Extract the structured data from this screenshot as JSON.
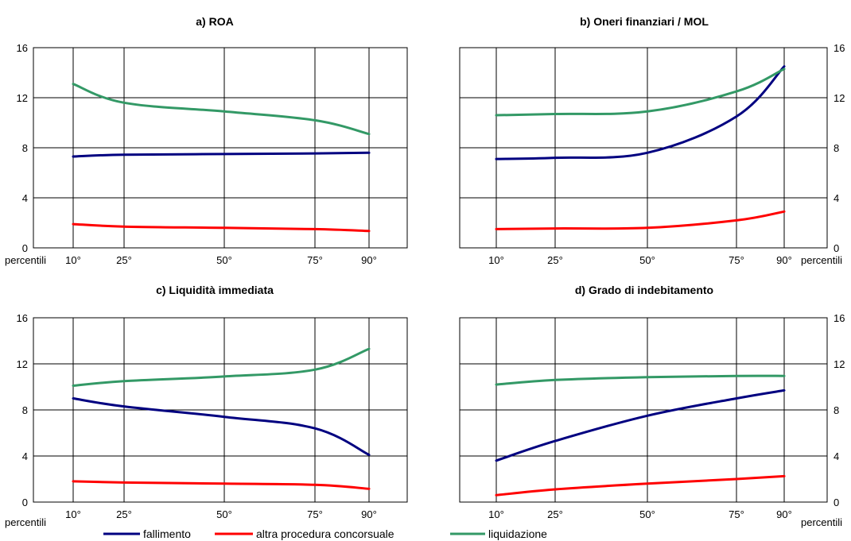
{
  "colors": {
    "fallimento": "#000080",
    "altra": "#ff0000",
    "liquidazione": "#339966"
  },
  "legend": [
    {
      "key": "fallimento",
      "label": "fallimento",
      "color": "#000080"
    },
    {
      "key": "altra",
      "label": "altra procedura concorsuale",
      "color": "#ff0000"
    },
    {
      "key": "liquidazione",
      "label": "liquidazione",
      "color": "#339966"
    }
  ],
  "chart_data": [
    {
      "type": "line",
      "title": "a) ROA",
      "xlabel": "percentili",
      "x_ticks": [
        "10°",
        "25°",
        "50°",
        "75°",
        "90°"
      ],
      "x": [
        10,
        25,
        50,
        75,
        90
      ],
      "ylim": [
        0,
        16
      ],
      "y_ticks": [
        "0",
        "4",
        "8",
        "12",
        "16"
      ],
      "y_axis_side": "left",
      "grid": true,
      "series": [
        {
          "name": "fallimento",
          "values": [
            7.3,
            7.45,
            7.5,
            7.55,
            7.6
          ]
        },
        {
          "name": "altra procedura concorsuale",
          "values": [
            1.9,
            1.7,
            1.6,
            1.5,
            1.35
          ]
        },
        {
          "name": "liquidazione",
          "values": [
            13.1,
            11.6,
            10.9,
            10.2,
            9.1
          ]
        }
      ]
    },
    {
      "type": "line",
      "title": "b) Oneri finanziari / MOL",
      "xlabel": "percentili",
      "x_ticks": [
        "10°",
        "25°",
        "50°",
        "75°",
        "90°"
      ],
      "x": [
        10,
        25,
        50,
        75,
        90
      ],
      "ylim": [
        0,
        16
      ],
      "y_ticks": [
        "0",
        "4",
        "8",
        "12",
        "16"
      ],
      "y_axis_side": "right",
      "grid": true,
      "series": [
        {
          "name": "fallimento",
          "values": [
            7.1,
            7.2,
            7.6,
            10.5,
            14.5
          ]
        },
        {
          "name": "altra procedura concorsuale",
          "values": [
            1.5,
            1.55,
            1.6,
            2.2,
            2.9
          ]
        },
        {
          "name": "liquidazione",
          "values": [
            10.6,
            10.7,
            10.9,
            12.5,
            14.3
          ]
        }
      ]
    },
    {
      "type": "line",
      "title": "c) Liquidità immediata",
      "xlabel": "percentili",
      "x_ticks": [
        "10°",
        "25°",
        "50°",
        "75°",
        "90°"
      ],
      "x": [
        10,
        25,
        50,
        75,
        90
      ],
      "ylim": [
        0,
        16
      ],
      "y_ticks": [
        "0",
        "4",
        "8",
        "12",
        "16"
      ],
      "y_axis_side": "left",
      "grid": true,
      "series": [
        {
          "name": "fallimento",
          "values": [
            9.0,
            8.3,
            7.4,
            6.4,
            4.1
          ]
        },
        {
          "name": "altra procedura concorsuale",
          "values": [
            1.8,
            1.7,
            1.6,
            1.5,
            1.15
          ]
        },
        {
          "name": "liquidazione",
          "values": [
            10.1,
            10.5,
            10.9,
            11.5,
            13.3
          ]
        }
      ]
    },
    {
      "type": "line",
      "title": "d) Grado di indebitamento",
      "xlabel": "percentili",
      "x_ticks": [
        "10°",
        "25°",
        "50°",
        "75°",
        "90°"
      ],
      "x": [
        10,
        25,
        50,
        75,
        90
      ],
      "ylim": [
        0,
        16
      ],
      "y_ticks": [
        "0",
        "4",
        "8",
        "12",
        "16"
      ],
      "y_axis_side": "right",
      "grid": true,
      "series": [
        {
          "name": "fallimento",
          "values": [
            3.6,
            5.3,
            7.5,
            9.0,
            9.7
          ]
        },
        {
          "name": "altra procedura concorsuale",
          "values": [
            0.6,
            1.1,
            1.6,
            2.0,
            2.25
          ]
        },
        {
          "name": "liquidazione",
          "values": [
            10.2,
            10.6,
            10.85,
            10.95,
            10.95
          ]
        }
      ]
    }
  ]
}
